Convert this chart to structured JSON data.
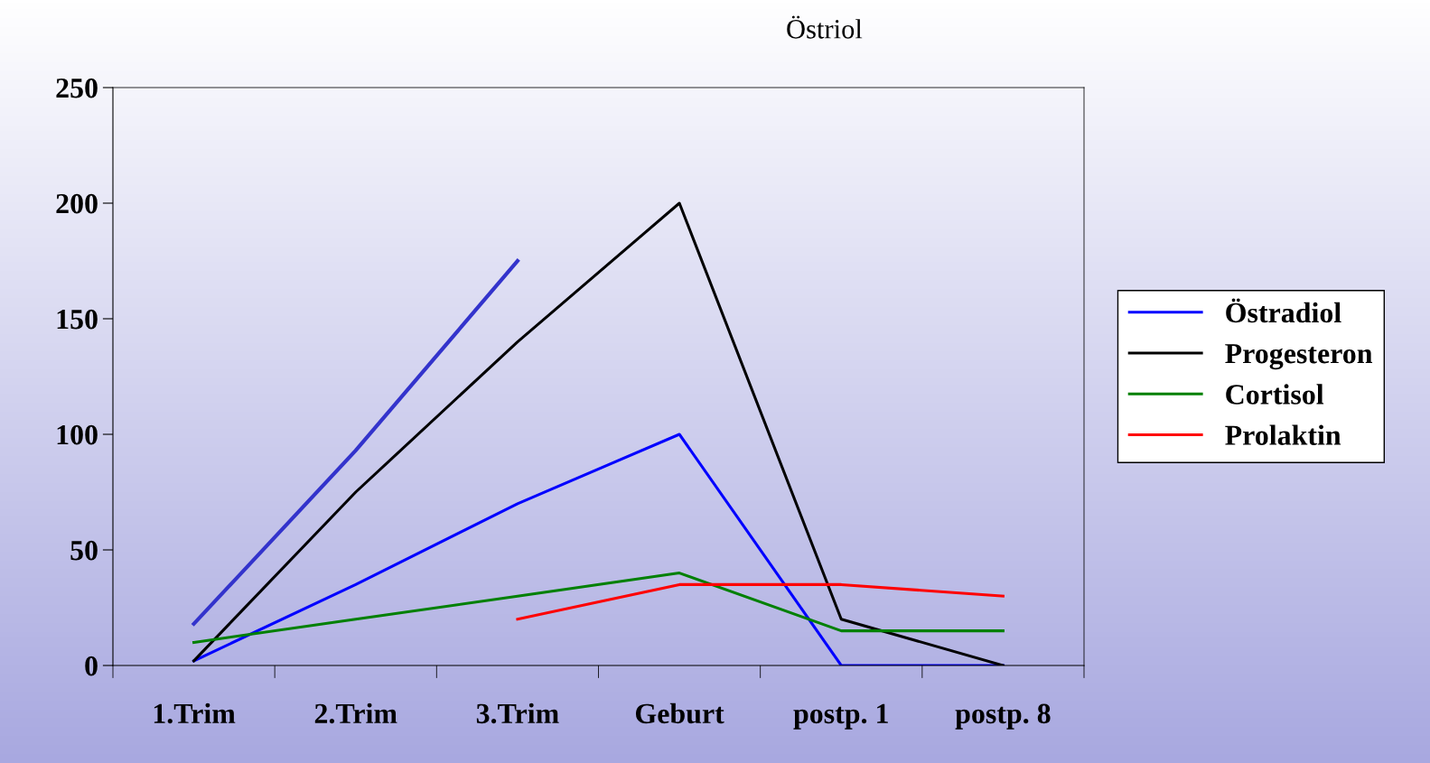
{
  "chart_data": {
    "type": "line",
    "categories": [
      "1.Trim",
      "2.Trim",
      "3.Trim",
      "Geburt",
      "postp. 1",
      "postp. 8"
    ],
    "series": [
      {
        "name": "Östradiol",
        "color": "#0000ff",
        "values": [
          2,
          35,
          70,
          100,
          0,
          0
        ]
      },
      {
        "name": "Progesteron",
        "color": "#000000",
        "values": [
          2,
          75,
          140,
          200,
          20,
          0
        ]
      },
      {
        "name": "Cortisol",
        "color": "#008000",
        "values": [
          10,
          20,
          30,
          40,
          15,
          15
        ]
      },
      {
        "name": "Prolaktin",
        "color": "#ff0000",
        "values": [
          null,
          null,
          20,
          35,
          35,
          30
        ]
      },
      {
        "color": "#3333cc",
        "values": [
          18,
          93,
          175,
          null,
          null,
          null
        ]
      }
    ],
    "annotations": [
      "Östriol"
    ],
    "ylim": [
      0,
      250
    ],
    "yticks": [
      0,
      50,
      100,
      150,
      200,
      250
    ],
    "grid": false,
    "legend": "right",
    "marker": "none"
  }
}
